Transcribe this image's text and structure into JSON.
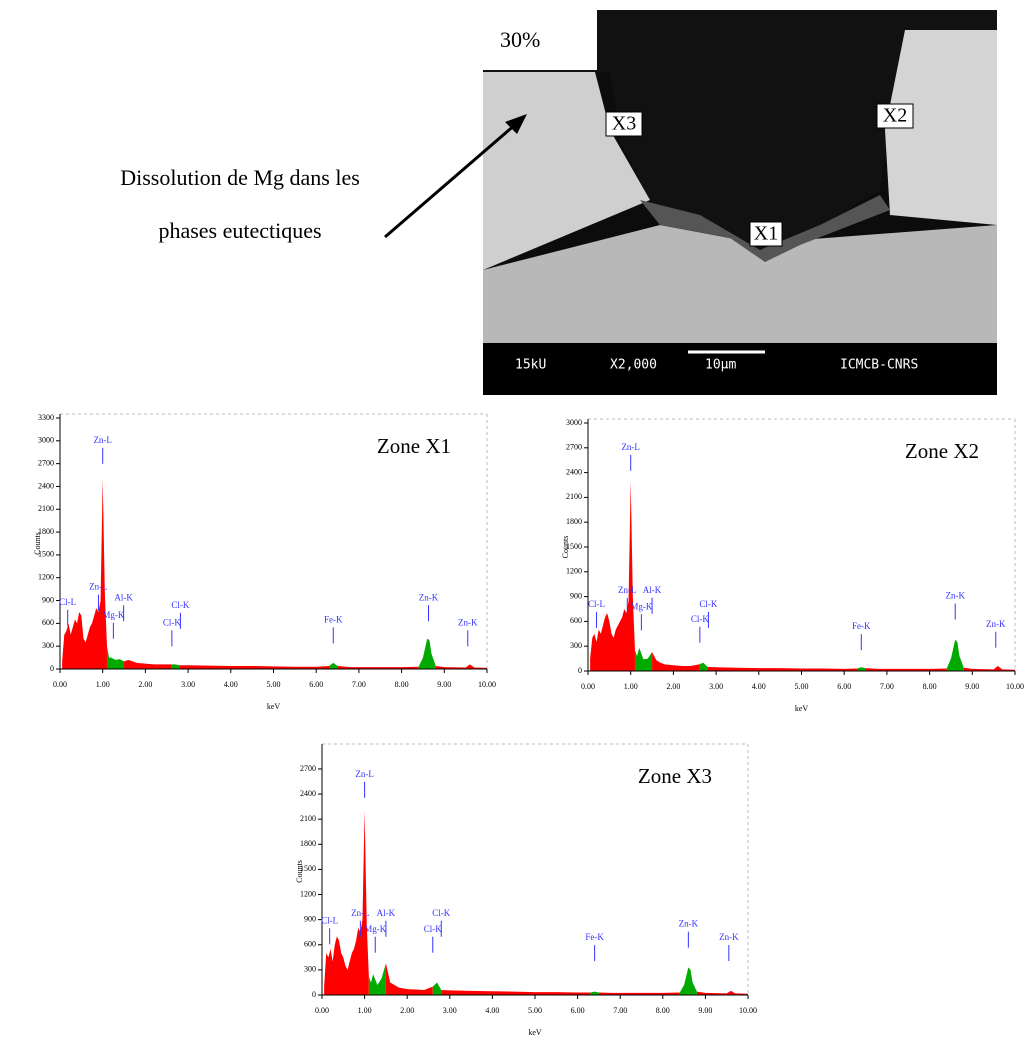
{
  "figure": {
    "percent": "30%",
    "annotation": [
      "Dissolution de Mg dans les",
      "phases eutectiques"
    ],
    "markers": [
      "X1",
      "X2",
      "X3"
    ],
    "info_bar": [
      "15kU",
      "X2,000",
      "10μm",
      "ICMCB-CNRS"
    ]
  },
  "chart_data": [
    {
      "type": "area",
      "title": "Zone X1",
      "xlabel": "keV",
      "ylabel": "Counts",
      "x": [
        0.05,
        0.1,
        0.15,
        0.2,
        0.25,
        0.3,
        0.35,
        0.4,
        0.45,
        0.5,
        0.55,
        0.6,
        0.65,
        0.7,
        0.75,
        0.8,
        0.85,
        0.9,
        0.95,
        1.0,
        1.05,
        1.1,
        1.15,
        1.2,
        1.3,
        1.4,
        1.5,
        1.6,
        1.7,
        1.8,
        2.0,
        2.2,
        2.4,
        2.6,
        2.7,
        2.8,
        3.0,
        3.5,
        4.0,
        4.5,
        5.0,
        5.5,
        6.0,
        6.3,
        6.4,
        6.5,
        6.8,
        7.5,
        8.0,
        8.4,
        8.5,
        8.6,
        8.65,
        8.7,
        8.8,
        9.0,
        9.5,
        9.6,
        9.7,
        10.0
      ],
      "series": [
        {
          "color": "#ff0000",
          "values": [
            100,
            450,
            500,
            600,
            450,
            550,
            650,
            600,
            750,
            700,
            400,
            350,
            450,
            550,
            600,
            700,
            800,
            750,
            900,
            2500,
            1000,
            300,
            null,
            null,
            null,
            null,
            100,
            120,
            100,
            80,
            70,
            60,
            60,
            60,
            null,
            50,
            50,
            45,
            40,
            40,
            35,
            30,
            30,
            40,
            null,
            40,
            25,
            25,
            25,
            30,
            null,
            null,
            null,
            null,
            40,
            25,
            20,
            60,
            20,
            15
          ]
        },
        {
          "color": "#00aa00",
          "values": [
            null,
            null,
            null,
            null,
            null,
            null,
            null,
            null,
            null,
            null,
            null,
            null,
            null,
            null,
            null,
            null,
            null,
            null,
            null,
            null,
            null,
            300,
            150,
            150,
            120,
            130,
            100,
            null,
            null,
            null,
            null,
            null,
            null,
            60,
            60,
            50,
            null,
            null,
            null,
            null,
            null,
            null,
            null,
            40,
            80,
            40,
            null,
            null,
            null,
            30,
            150,
            400,
            380,
            200,
            40,
            null,
            null,
            null,
            null,
            null
          ]
        }
      ],
      "xlim": [
        0,
        10
      ],
      "xticks": [
        {
          "value": 0,
          "label": "0.00"
        },
        {
          "value": 1,
          "label": "1.00"
        },
        {
          "value": 2,
          "label": "2.00"
        },
        {
          "value": 3,
          "label": "3.00"
        },
        {
          "value": 4,
          "label": "4.00"
        },
        {
          "value": 5,
          "label": "5.00"
        },
        {
          "value": 6,
          "label": "6.00"
        },
        {
          "value": 7,
          "label": "7.00"
        },
        {
          "value": 8,
          "label": "8.00"
        },
        {
          "value": 9,
          "label": "9.00"
        },
        {
          "value": 10,
          "label": "10.00"
        }
      ],
      "ylim": [
        0,
        3300
      ],
      "yticks": [
        0,
        300,
        600,
        900,
        1200,
        1500,
        1800,
        2100,
        2400,
        2700,
        3000,
        3300
      ],
      "peak_labels": [
        {
          "label": "Cl-L",
          "x": 0.18,
          "y": 870
        },
        {
          "label": "Zn-L",
          "x": 1.0,
          "y": 3000
        },
        {
          "label": "Zn-L",
          "x": 0.9,
          "y": 1070
        },
        {
          "label": "Mg-K",
          "x": 1.25,
          "y": 700
        },
        {
          "label": "Al-K",
          "x": 1.49,
          "y": 930
        },
        {
          "label": "Cl-K",
          "x": 2.62,
          "y": 600
        },
        {
          "label": "Cl-K",
          "x": 2.82,
          "y": 830
        },
        {
          "label": "Fe-K",
          "x": 6.4,
          "y": 640
        },
        {
          "label": "Zn-K",
          "x": 8.63,
          "y": 930
        },
        {
          "label": "Zn-K",
          "x": 9.55,
          "y": 600
        }
      ]
    },
    {
      "type": "area",
      "title": "Zone X2",
      "xlabel": "keV",
      "ylabel": "Counts",
      "x": [
        0.05,
        0.1,
        0.15,
        0.2,
        0.25,
        0.3,
        0.35,
        0.4,
        0.45,
        0.5,
        0.55,
        0.6,
        0.65,
        0.7,
        0.75,
        0.8,
        0.85,
        0.9,
        0.95,
        1.0,
        1.05,
        1.1,
        1.15,
        1.2,
        1.3,
        1.4,
        1.5,
        1.6,
        1.7,
        1.8,
        2.0,
        2.2,
        2.4,
        2.6,
        2.7,
        2.8,
        3.0,
        3.5,
        4.0,
        4.5,
        5.0,
        5.5,
        6.0,
        6.3,
        6.4,
        6.5,
        6.8,
        7.5,
        8.0,
        8.4,
        8.5,
        8.6,
        8.65,
        8.7,
        8.8,
        9.0,
        9.5,
        9.6,
        9.7,
        10.0
      ],
      "series": [
        {
          "color": "#ff0000",
          "values": [
            150,
            400,
            450,
            350,
            500,
            450,
            550,
            650,
            700,
            600,
            450,
            400,
            500,
            550,
            600,
            650,
            750,
            700,
            850,
            2300,
            900,
            250,
            null,
            null,
            null,
            null,
            230,
            130,
            100,
            80,
            70,
            60,
            60,
            80,
            null,
            50,
            45,
            40,
            35,
            35,
            30,
            30,
            25,
            30,
            null,
            35,
            25,
            25,
            25,
            30,
            null,
            null,
            null,
            null,
            40,
            25,
            20,
            60,
            20,
            15
          ]
        },
        {
          "color": "#00aa00",
          "values": [
            null,
            null,
            null,
            null,
            null,
            null,
            null,
            null,
            null,
            null,
            null,
            null,
            null,
            null,
            null,
            null,
            null,
            null,
            null,
            null,
            null,
            250,
            180,
            280,
            140,
            150,
            230,
            null,
            null,
            null,
            null,
            null,
            null,
            80,
            100,
            50,
            null,
            null,
            null,
            null,
            null,
            null,
            null,
            30,
            45,
            35,
            null,
            null,
            null,
            30,
            150,
            380,
            350,
            180,
            40,
            null,
            null,
            null,
            null,
            null
          ]
        }
      ],
      "xlim": [
        0,
        10
      ],
      "xticks": [
        {
          "value": 0,
          "label": "0.00"
        },
        {
          "value": 1,
          "label": "1.00"
        },
        {
          "value": 2,
          "label": "2.00"
        },
        {
          "value": 3,
          "label": "3.00"
        },
        {
          "value": 4,
          "label": "4.00"
        },
        {
          "value": 5,
          "label": "5.00"
        },
        {
          "value": 6,
          "label": "6.00"
        },
        {
          "value": 7,
          "label": "7.00"
        },
        {
          "value": 8,
          "label": "8.00"
        },
        {
          "value": 9,
          "label": "9.00"
        },
        {
          "value": 10,
          "label": "10.00"
        }
      ],
      "ylim": [
        0,
        3000
      ],
      "yticks": [
        0,
        300,
        600,
        900,
        1200,
        1500,
        1800,
        2100,
        2400,
        2700,
        3000
      ],
      "peak_labels": [
        {
          "label": "Cl-L",
          "x": 0.2,
          "y": 800
        },
        {
          "label": "Zn-L",
          "x": 1.0,
          "y": 2700
        },
        {
          "label": "Zn-L",
          "x": 0.92,
          "y": 970
        },
        {
          "label": "Al-K",
          "x": 1.5,
          "y": 970
        },
        {
          "label": "Mg-K",
          "x": 1.25,
          "y": 770
        },
        {
          "label": "Cl-K",
          "x": 2.82,
          "y": 800
        },
        {
          "label": "Cl-K",
          "x": 2.62,
          "y": 620
        },
        {
          "label": "Fe-K",
          "x": 6.4,
          "y": 530
        },
        {
          "label": "Zn-K",
          "x": 8.6,
          "y": 900
        },
        {
          "label": "Zn-K",
          "x": 9.55,
          "y": 560
        }
      ]
    },
    {
      "type": "area",
      "title": "Zone X3",
      "xlabel": "keV",
      "ylabel": "Counts",
      "x": [
        0.05,
        0.1,
        0.15,
        0.2,
        0.25,
        0.3,
        0.35,
        0.4,
        0.45,
        0.5,
        0.55,
        0.6,
        0.65,
        0.7,
        0.75,
        0.8,
        0.85,
        0.9,
        0.95,
        1.0,
        1.05,
        1.1,
        1.15,
        1.2,
        1.3,
        1.4,
        1.5,
        1.6,
        1.7,
        1.8,
        2.0,
        2.2,
        2.4,
        2.6,
        2.7,
        2.8,
        3.0,
        3.5,
        4.0,
        4.5,
        5.0,
        5.5,
        6.0,
        6.3,
        6.4,
        6.5,
        6.8,
        7.5,
        8.0,
        8.4,
        8.5,
        8.6,
        8.65,
        8.7,
        8.8,
        9.0,
        9.5,
        9.6,
        9.7,
        10.0
      ],
      "series": [
        {
          "color": "#ff0000",
          "values": [
            100,
            500,
            450,
            550,
            400,
            600,
            700,
            650,
            500,
            450,
            350,
            300,
            400,
            500,
            550,
            650,
            800,
            750,
            900,
            2200,
            850,
            220,
            null,
            null,
            null,
            null,
            380,
            150,
            120,
            90,
            70,
            65,
            60,
            100,
            null,
            60,
            55,
            50,
            45,
            40,
            35,
            35,
            30,
            30,
            null,
            30,
            25,
            25,
            25,
            30,
            null,
            null,
            null,
            null,
            40,
            25,
            20,
            50,
            20,
            15
          ]
        },
        {
          "color": "#00aa00",
          "values": [
            null,
            null,
            null,
            null,
            null,
            null,
            null,
            null,
            null,
            null,
            null,
            null,
            null,
            null,
            null,
            null,
            null,
            null,
            null,
            null,
            null,
            220,
            150,
            250,
            120,
            200,
            380,
            null,
            null,
            null,
            null,
            null,
            null,
            100,
            150,
            60,
            null,
            null,
            null,
            null,
            null,
            null,
            null,
            30,
            40,
            30,
            null,
            null,
            null,
            30,
            120,
            330,
            300,
            150,
            40,
            null,
            null,
            null,
            null,
            null
          ]
        }
      ],
      "xlim": [
        0,
        10
      ],
      "xticks": [
        {
          "value": 0,
          "label": "0.00"
        },
        {
          "value": 1,
          "label": "1.00"
        },
        {
          "value": 2,
          "label": "2.00"
        },
        {
          "value": 3,
          "label": "3.00"
        },
        {
          "value": 4,
          "label": "4.00"
        },
        {
          "value": 5,
          "label": "5.00"
        },
        {
          "value": 6,
          "label": "6.00"
        },
        {
          "value": 7,
          "label": "7.00"
        },
        {
          "value": 8,
          "label": "8.00"
        },
        {
          "value": 9,
          "label": "9.00"
        },
        {
          "value": 10,
          "label": "10.00"
        }
      ],
      "ylim": [
        0,
        2950
      ],
      "yticks": [
        0,
        300,
        600,
        900,
        1200,
        1500,
        1800,
        2100,
        2400,
        2700
      ],
      "peak_labels": [
        {
          "label": "Cl-L",
          "x": 0.18,
          "y": 880
        },
        {
          "label": "Zn-L",
          "x": 1.0,
          "y": 2630
        },
        {
          "label": "Zn-L",
          "x": 0.9,
          "y": 970
        },
        {
          "label": "Al-K",
          "x": 1.5,
          "y": 970
        },
        {
          "label": "Mg-K",
          "x": 1.25,
          "y": 780
        },
        {
          "label": "Cl-K",
          "x": 2.8,
          "y": 970
        },
        {
          "label": "Cl-K",
          "x": 2.6,
          "y": 780
        },
        {
          "label": "Fe-K",
          "x": 6.4,
          "y": 680
        },
        {
          "label": "Zn-K",
          "x": 8.6,
          "y": 840
        },
        {
          "label": "Zn-K",
          "x": 9.55,
          "y": 680
        }
      ]
    }
  ]
}
